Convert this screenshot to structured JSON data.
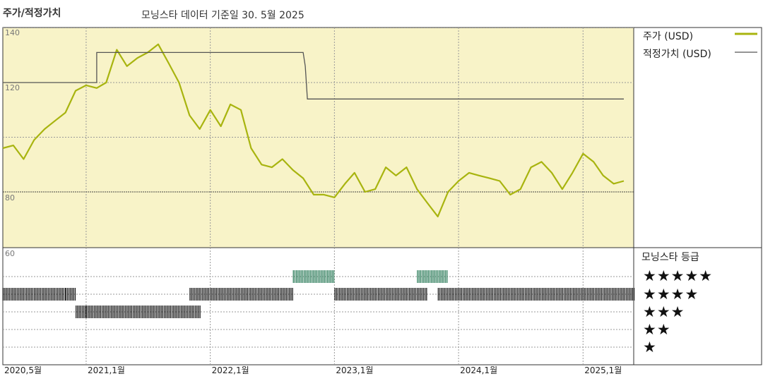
{
  "header": {
    "title": "주가/적정가치",
    "subtitle": "모닝스타 데이터 기준일 30. 5월 2025"
  },
  "legend": {
    "price_label": "주가 (USD)",
    "fair_label": "적정가치 (USD)",
    "rating_title": "모닝스타 등급"
  },
  "colors": {
    "price_line": "#a8b40f",
    "fair_line": "#555555",
    "upper_bg": "#f8f3c8",
    "rating_bar": "#1a1a1a",
    "rating_bar_5": "#2e7d5b",
    "grid": "#999999"
  },
  "chart_data": {
    "type": "line",
    "title": "주가/적정가치",
    "subtitle": "모닝스타 데이터 기준일 30. 5월 2025",
    "x_tick_labels": [
      "2020,5월",
      "2021,1월",
      "2022,1월",
      "2023,1월",
      "2024,1월",
      "2025,1월"
    ],
    "x_tick_dates": [
      "2020-05",
      "2021-01",
      "2022-01",
      "2023-01",
      "2024-01",
      "2025-01"
    ],
    "x_range": [
      "2020-05-01",
      "2025-05-30"
    ],
    "y_tick_labels": [
      "140",
      "120",
      "80",
      "60"
    ],
    "ylim": [
      60,
      140
    ],
    "grid": true,
    "legend_position": "right",
    "series": [
      {
        "name": "주가 (USD)",
        "points": [
          [
            "2020-05",
            96
          ],
          [
            "2020-06",
            97
          ],
          [
            "2020-07",
            92
          ],
          [
            "2020-08",
            99
          ],
          [
            "2020-09",
            103
          ],
          [
            "2020-10",
            106
          ],
          [
            "2020-11",
            109
          ],
          [
            "2020-12",
            117
          ],
          [
            "2021-01",
            119
          ],
          [
            "2021-02",
            118
          ],
          [
            "2021-03",
            120
          ],
          [
            "2021-04",
            132
          ],
          [
            "2021-05",
            126
          ],
          [
            "2021-06",
            129
          ],
          [
            "2021-07",
            131
          ],
          [
            "2021-08",
            134
          ],
          [
            "2021-09",
            127
          ],
          [
            "2021-10",
            120
          ],
          [
            "2021-11",
            108
          ],
          [
            "2021-12",
            103
          ],
          [
            "2022-01",
            110
          ],
          [
            "2022-02",
            104
          ],
          [
            "2022-03",
            112
          ],
          [
            "2022-04",
            110
          ],
          [
            "2022-05",
            96
          ],
          [
            "2022-06",
            90
          ],
          [
            "2022-07",
            89
          ],
          [
            "2022-08",
            92
          ],
          [
            "2022-09",
            88
          ],
          [
            "2022-10",
            85
          ],
          [
            "2022-11",
            79
          ],
          [
            "2022-12",
            79
          ],
          [
            "2023-01",
            78
          ],
          [
            "2023-02",
            83
          ],
          [
            "2023-03",
            87
          ],
          [
            "2023-04",
            80
          ],
          [
            "2023-05",
            81
          ],
          [
            "2023-06",
            89
          ],
          [
            "2023-07",
            86
          ],
          [
            "2023-08",
            89
          ],
          [
            "2023-09",
            81
          ],
          [
            "2023-10",
            76
          ],
          [
            "2023-11",
            71
          ],
          [
            "2023-12",
            80
          ],
          [
            "2024-01",
            84
          ],
          [
            "2024-02",
            87
          ],
          [
            "2024-03",
            86
          ],
          [
            "2024-04",
            85
          ],
          [
            "2024-05",
            84
          ],
          [
            "2024-06",
            79
          ],
          [
            "2024-07",
            81
          ],
          [
            "2024-08",
            89
          ],
          [
            "2024-09",
            91
          ],
          [
            "2024-10",
            87
          ],
          [
            "2024-11",
            81
          ],
          [
            "2024-12",
            87
          ],
          [
            "2025-01",
            94
          ],
          [
            "2025-02",
            91
          ],
          [
            "2025-03",
            86
          ],
          [
            "2025-04",
            83
          ],
          [
            "2025-05",
            84
          ]
        ]
      },
      {
        "name": "적정가치 (USD)",
        "points": [
          [
            "2020-05",
            120
          ],
          [
            "2021-02",
            120
          ],
          [
            "2021-02",
            131
          ],
          [
            "2022-10",
            131
          ],
          [
            "2022-10",
            126
          ],
          [
            "2022-10",
            114
          ],
          [
            "2025-05",
            114
          ]
        ]
      }
    ],
    "rating": {
      "title": "모닝스타 등급",
      "levels": [
        "★★★★★",
        "★★★★",
        "★★★",
        "★★",
        "★"
      ],
      "periods": [
        {
          "stars": 4,
          "start": "2020-05",
          "end": "2020-10"
        },
        {
          "stars": 4,
          "start": "2020-11",
          "end": "2020-11"
        },
        {
          "stars": 3,
          "start": "2020-12",
          "end": "2020-12"
        },
        {
          "stars": 3,
          "start": "2021-01",
          "end": "2021-11"
        },
        {
          "stars": 4,
          "start": "2021-11",
          "end": "2022-08"
        },
        {
          "stars": 5,
          "start": "2022-09",
          "end": "2022-12"
        },
        {
          "stars": 4,
          "start": "2023-01",
          "end": "2023-09"
        },
        {
          "stars": 5,
          "start": "2023-09",
          "end": "2023-11"
        },
        {
          "stars": 4,
          "start": "2023-11",
          "end": "2025-05"
        }
      ]
    }
  }
}
